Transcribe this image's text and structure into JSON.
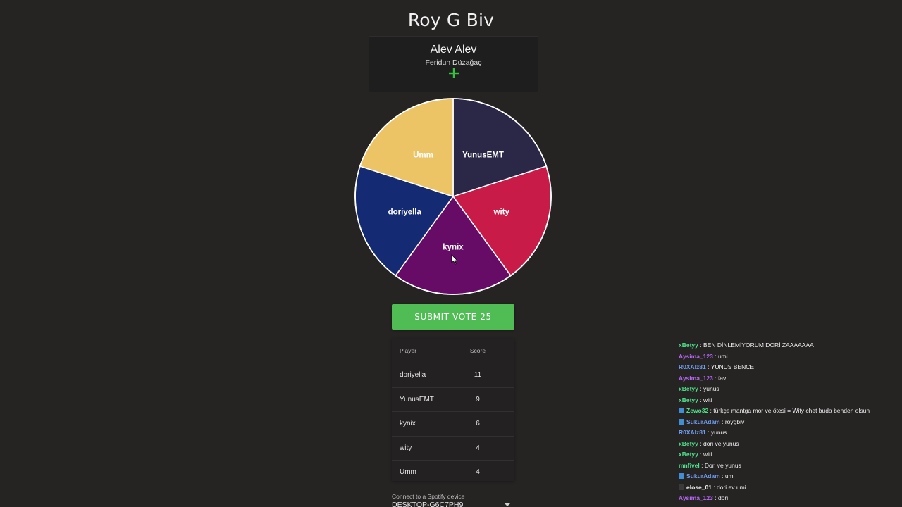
{
  "page_title": "Roy G Biv",
  "song": {
    "title": "Alev Alev",
    "artist": "Feridun Düzağaç",
    "add_icon": "plus-icon",
    "add_color": "#36c23f"
  },
  "wheel": {
    "segments": [
      {
        "label": "YunusEMT",
        "color": "#2a2747"
      },
      {
        "label": "wity",
        "color": "#c81b47"
      },
      {
        "label": "kynix",
        "color": "#660b66"
      },
      {
        "label": "doriyella",
        "color": "#142b74"
      },
      {
        "label": "Umm",
        "color": "#ecc466"
      }
    ]
  },
  "submit": {
    "label": "SUBMIT VOTE 25",
    "color": "#4fbd53"
  },
  "scoreboard": {
    "header_player": "Player",
    "header_score": "Score",
    "rows": [
      {
        "player": "doriyella",
        "score": "11"
      },
      {
        "player": "YunusEMT",
        "score": "9"
      },
      {
        "player": "kynix",
        "score": "6"
      },
      {
        "player": "wity",
        "score": "4"
      },
      {
        "player": "Umm",
        "score": "4"
      }
    ]
  },
  "spotify": {
    "label": "Connect to a Spotify device",
    "selected": "DESKTOP-G6C7PH9"
  },
  "chat": {
    "messages": [
      {
        "user": "xBetyy",
        "text": "BEN DİNLEMİYORUM DORİ ZAAAAAAA",
        "color": "#4ce08a",
        "badge": false
      },
      {
        "user": "Aysima_123",
        "text": "umi",
        "color": "#b565f5",
        "badge": false
      },
      {
        "user": "R0XAlz81",
        "text": "YUNUS BENCE",
        "color": "#6f9ef0",
        "badge": false
      },
      {
        "user": "Aysima_123",
        "text": "fav",
        "color": "#b565f5",
        "badge": false
      },
      {
        "user": "xBetyy",
        "text": "yunus",
        "color": "#4ce08a",
        "badge": false
      },
      {
        "user": "xBetyy",
        "text": "witi",
        "color": "#4ce08a",
        "badge": false
      },
      {
        "user": "Zewo32",
        "text": "türkçe mantga mor ve ötesi = Wity chet buda benden olsun",
        "color": "#4ce08a",
        "badge": true
      },
      {
        "user": "SukurAdam",
        "text": "roygbiv",
        "color": "#6f9ef0",
        "badge": true
      },
      {
        "user": "R0XAlz81",
        "text": "yunus",
        "color": "#6f9ef0",
        "badge": false
      },
      {
        "user": "xBetyy",
        "text": "dori ve yunus",
        "color": "#4ce08a",
        "badge": false
      },
      {
        "user": "xBetyy",
        "text": "witi",
        "color": "#4ce08a",
        "badge": false
      },
      {
        "user": "mnfivel",
        "text": "Dori ve yunus",
        "color": "#4ce08a",
        "badge": false
      },
      {
        "user": "SukurAdam",
        "text": "umi",
        "color": "#6f9ef0",
        "badge": true
      },
      {
        "user": "elose_01",
        "text": "dori ev umi",
        "color": "#efefef",
        "badge": true,
        "badge_dark": true
      },
      {
        "user": "Aysima_123",
        "text": "dori",
        "color": "#b565f5",
        "badge": false
      }
    ]
  }
}
